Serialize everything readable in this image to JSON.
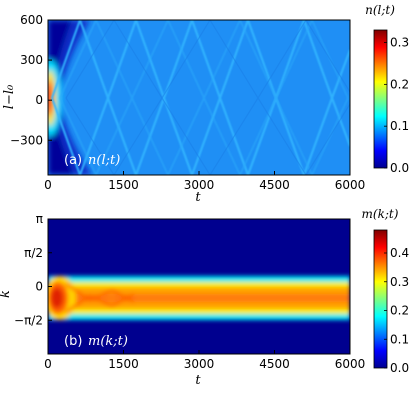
{
  "chart_data": [
    {
      "type": "heatmap",
      "panel_label": "(a)",
      "panel_quantity": "n(l;t)",
      "colorbar_title": "n(l;t)",
      "xlabel": "t",
      "ylabel": "l−l₀",
      "x_range": [
        0,
        6000
      ],
      "y_range": [
        -560,
        600
      ],
      "x_ticks": [
        "0",
        "1500",
        "3000",
        "4500",
        "6000"
      ],
      "x_tick_values": [
        0,
        1500,
        3000,
        4500,
        6000
      ],
      "y_ticks": [
        "600",
        "300",
        "0",
        "−300"
      ],
      "y_tick_values": [
        600,
        300,
        0,
        -300
      ],
      "color_range": [
        0.0,
        0.33
      ],
      "colorbar_ticks": [
        "0.3",
        "0.2",
        "0.1",
        "0.0"
      ],
      "colorbar_tick_values": [
        0.3,
        0.2,
        0.1,
        0.0
      ]
    },
    {
      "type": "heatmap",
      "panel_label": "(b)",
      "panel_quantity": "m(k;t)",
      "colorbar_title": "m(k;t)",
      "xlabel": "t",
      "ylabel": "k",
      "x_range": [
        0,
        6000
      ],
      "y_range": [
        -3.1416,
        3.1416
      ],
      "x_ticks": [
        "0",
        "1500",
        "3000",
        "4500",
        "6000"
      ],
      "x_tick_values": [
        0,
        1500,
        3000,
        4500,
        6000
      ],
      "y_ticks": [
        "π",
        "π/2",
        "0",
        "−π/2"
      ],
      "y_tick_values": [
        3.1416,
        1.5708,
        0,
        -1.5708
      ],
      "color_range": [
        0.0,
        0.48
      ],
      "colorbar_ticks": [
        "0.4",
        "0.3",
        "0.2",
        "0.1",
        "0.0"
      ],
      "colorbar_tick_values": [
        0.4,
        0.3,
        0.2,
        0.1,
        0.0
      ]
    }
  ],
  "colormap": "jet"
}
